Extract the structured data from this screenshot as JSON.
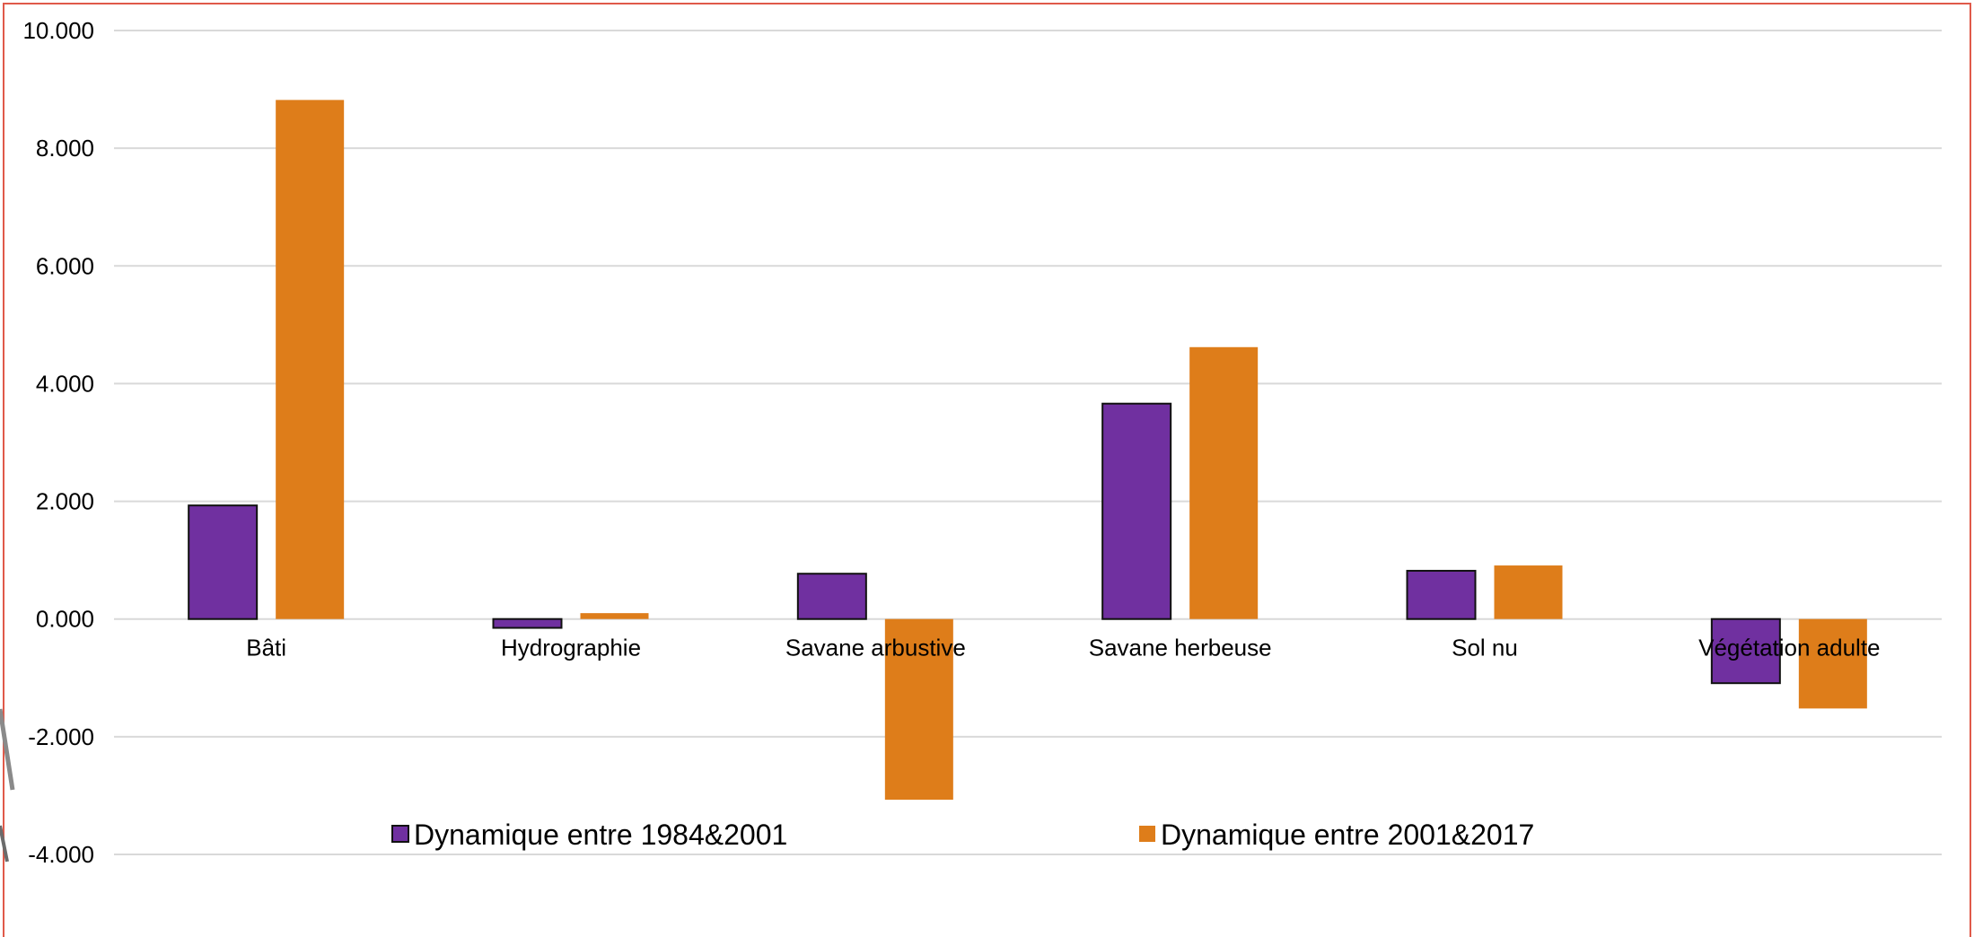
{
  "chart_data": {
    "type": "bar",
    "categories": [
      "Bâti",
      "Hydrographie",
      "Savane arbustive",
      "Savane herbeuse",
      "Sol nu",
      "Végétation adulte"
    ],
    "series": [
      {
        "name": "Dynamique entre 1984&2001",
        "color": "#7030a0",
        "values": [
          1.93,
          -0.15,
          0.77,
          3.66,
          0.82,
          -1.09
        ]
      },
      {
        "name": "Dynamique entre 2001&2017",
        "color": "#de7d1a",
        "values": [
          8.82,
          0.1,
          -3.07,
          4.62,
          0.91,
          -1.52
        ]
      }
    ],
    "ylim": [
      -4,
      10
    ],
    "yticks": [
      -4,
      -2,
      0,
      2,
      4,
      6,
      8,
      10
    ],
    "ytick_labels": [
      "-4.000",
      "-2.000",
      "0.000",
      "2.000",
      "4.000",
      "6.000",
      "8.000",
      "10.000"
    ],
    "grid": true,
    "legend_position": "bottom",
    "title": "",
    "xlabel": "",
    "ylabel": ""
  }
}
